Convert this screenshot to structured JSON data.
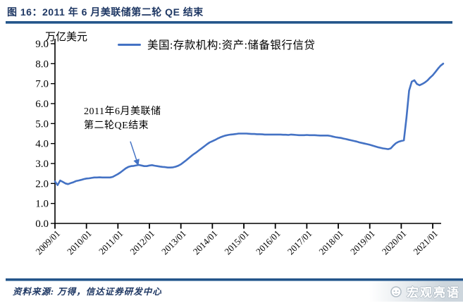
{
  "figure": {
    "title": "图 16：2011 年 6 月美联储第二轮 QE 结束",
    "source_note": "资料来源: 万得，信达证券研发中心",
    "watermark": "宏观亮语"
  },
  "chart_data": {
    "type": "line",
    "unit_label": "万亿美元",
    "legend": [
      {
        "label": "美国:存款机构:资产:储备银行信贷",
        "color": "#4472c4"
      }
    ],
    "legend_position": "top",
    "grid": false,
    "ylim": [
      0,
      9
    ],
    "y_tick_labels": [
      "0.0",
      "1.0",
      "2.0",
      "3.0",
      "4.0",
      "5.0",
      "6.0",
      "7.0",
      "8.0",
      "9.0"
    ],
    "x_tick_labels": [
      "2009/01",
      "2010/01",
      "2011/01",
      "2012/01",
      "2013/01",
      "2014/01",
      "2015/01",
      "2016/01",
      "2017/01",
      "2018/01",
      "2019/01",
      "2020/01",
      "2021/01"
    ],
    "annotation": {
      "line1": "2011年6月美联储",
      "line2": "第二轮QE结束",
      "points_to_date": "2011/06",
      "points_to_value": 2.87
    },
    "series": [
      {
        "name": "美国:存款机构:资产:储备银行信贷",
        "color": "#4472c4",
        "start": "2009/01",
        "frequency": "monthly",
        "values": [
          2.1,
          1.92,
          2.15,
          2.08,
          2.0,
          1.97,
          2.02,
          2.06,
          2.12,
          2.15,
          2.18,
          2.22,
          2.25,
          2.26,
          2.28,
          2.3,
          2.3,
          2.31,
          2.3,
          2.3,
          2.3,
          2.3,
          2.33,
          2.4,
          2.47,
          2.56,
          2.66,
          2.76,
          2.83,
          2.87,
          2.88,
          2.91,
          2.93,
          2.9,
          2.87,
          2.87,
          2.9,
          2.92,
          2.89,
          2.87,
          2.85,
          2.83,
          2.82,
          2.8,
          2.8,
          2.81,
          2.84,
          2.89,
          2.96,
          3.06,
          3.16,
          3.27,
          3.38,
          3.48,
          3.57,
          3.67,
          3.77,
          3.87,
          3.97,
          4.06,
          4.12,
          4.18,
          4.25,
          4.31,
          4.36,
          4.4,
          4.43,
          4.45,
          4.46,
          4.48,
          4.5,
          4.5,
          4.5,
          4.5,
          4.49,
          4.48,
          4.48,
          4.47,
          4.47,
          4.46,
          4.45,
          4.45,
          4.45,
          4.45,
          4.45,
          4.45,
          4.45,
          4.44,
          4.44,
          4.43,
          4.45,
          4.44,
          4.43,
          4.42,
          4.42,
          4.42,
          4.43,
          4.42,
          4.42,
          4.42,
          4.41,
          4.4,
          4.4,
          4.4,
          4.4,
          4.38,
          4.35,
          4.32,
          4.3,
          4.28,
          4.25,
          4.22,
          4.19,
          4.16,
          4.13,
          4.1,
          4.06,
          4.03,
          4.0,
          3.97,
          3.94,
          3.9,
          3.86,
          3.82,
          3.79,
          3.76,
          3.74,
          3.72,
          3.76,
          3.9,
          4.02,
          4.09,
          4.13,
          4.16,
          5.3,
          6.65,
          7.1,
          7.17,
          6.98,
          6.92,
          6.98,
          7.06,
          7.16,
          7.3,
          7.42,
          7.58,
          7.75,
          7.9,
          8.0
        ]
      }
    ]
  },
  "colors": {
    "line": "#4472c4",
    "title": "#1f3864",
    "rule": "#24558a",
    "axis": "#000000",
    "watermark_bg": "#cdd6dd"
  }
}
